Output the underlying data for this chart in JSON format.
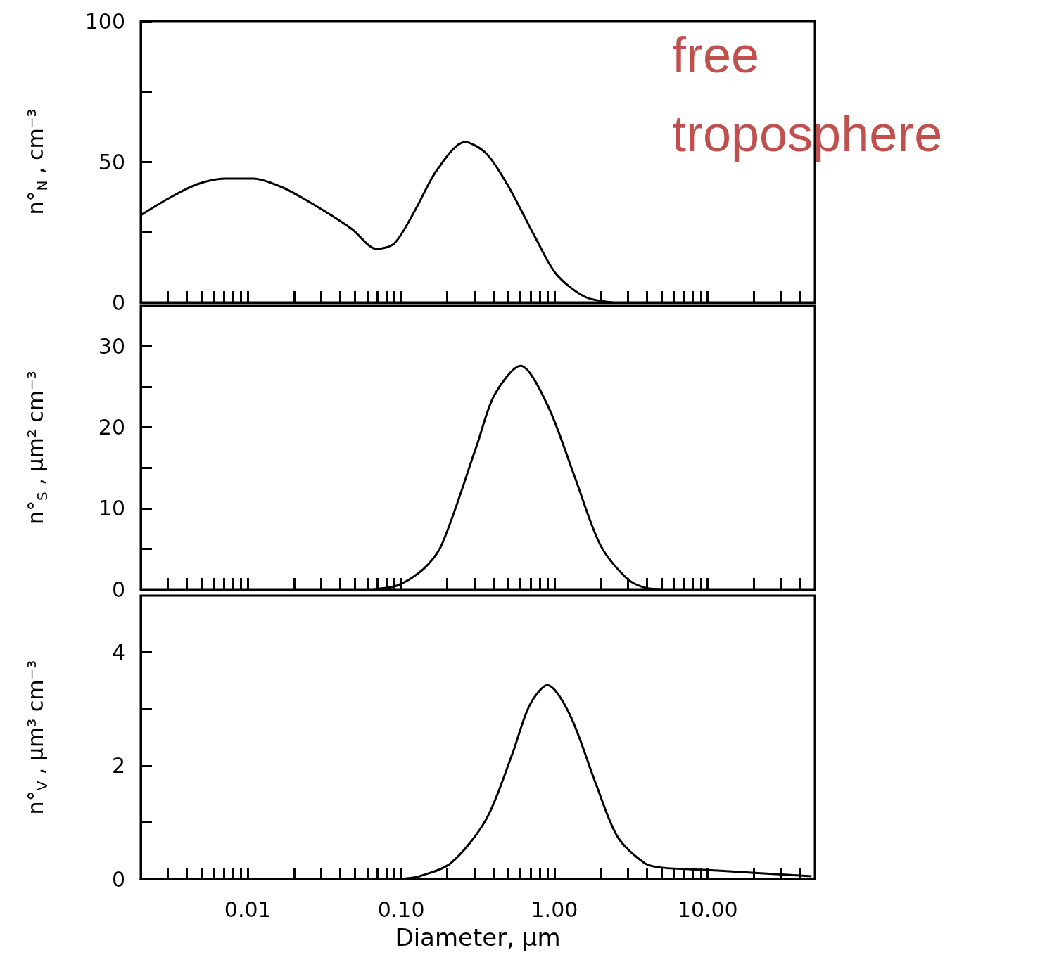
{
  "chart_data": [
    {
      "type": "line",
      "ylabel": "n°$_{N}$ , cm⁻³",
      "log": "x",
      "tick_labels": "y",
      "annotations": [
        "free troposphere"
      ],
      "xlim": [
        0.002,
        50
      ],
      "ylim": [
        0,
        100
      ],
      "yticks": [
        0,
        {
          "value": 25,
          "label": null
        },
        50,
        {
          "value": 75,
          "label": null
        },
        100
      ],
      "xticks": [
        {
          "value": 0.003,
          "label": null
        },
        {
          "value": 0.004,
          "label": null
        },
        {
          "value": 0.005,
          "label": null
        },
        {
          "value": 0.006,
          "label": null
        },
        {
          "value": 0.007,
          "label": null
        },
        {
          "value": 0.008,
          "label": null
        },
        {
          "value": 0.009,
          "label": null
        },
        {
          "value": 0.01,
          "label": null
        },
        {
          "value": 0.02,
          "label": null
        },
        {
          "value": 0.03,
          "label": null
        },
        {
          "value": 0.04,
          "label": null
        },
        {
          "value": 0.05,
          "label": null
        },
        {
          "value": 0.06,
          "label": null
        },
        {
          "value": 0.07,
          "label": null
        },
        {
          "value": 0.08,
          "label": null
        },
        {
          "value": 0.09,
          "label": null
        },
        {
          "value": 0.1,
          "label": null
        },
        {
          "value": 0.2,
          "label": null
        },
        {
          "value": 0.3,
          "label": null
        },
        {
          "value": 0.4,
          "label": null
        },
        {
          "value": 0.5,
          "label": null
        },
        {
          "value": 0.6,
          "label": null
        },
        {
          "value": 0.7,
          "label": null
        },
        {
          "value": 0.8,
          "label": null
        },
        {
          "value": 0.9,
          "label": null
        },
        {
          "value": 1,
          "label": null
        },
        {
          "value": 2,
          "label": null
        },
        {
          "value": 3,
          "label": null
        },
        {
          "value": 4,
          "label": null
        },
        {
          "value": 5,
          "label": null
        },
        {
          "value": 6,
          "label": null
        },
        {
          "value": 7,
          "label": null
        },
        {
          "value": 8,
          "label": null
        },
        {
          "value": 9,
          "label": null
        },
        {
          "value": 10,
          "label": null
        },
        {
          "value": 20,
          "label": null
        },
        {
          "value": 30,
          "label": null
        },
        {
          "value": 40,
          "label": null
        }
      ],
      "series": [
        {
          "color": "#000000",
          "x": [
            0.002,
            0.00305,
            0.00467,
            0.00713,
            0.0109,
            0.0166,
            0.0229,
            0.0349,
            0.0479,
            0.0693,
            0.0904,
            0.124,
            0.171,
            0.261,
            0.358,
            0.492,
            0.752,
            1.03,
            1.58,
            2.41
          ],
          "values": [
            31,
            37,
            42,
            44,
            44,
            41,
            37,
            31,
            26,
            19,
            21,
            33,
            47,
            57,
            53,
            42,
            23,
            10,
            2,
            0
          ]
        }
      ]
    },
    {
      "type": "line",
      "ylabel": "n°$_{S}$ , µm² cm⁻³",
      "log": "x",
      "tick_labels": "y",
      "xlim": [
        0.002,
        50
      ],
      "ylim": [
        0,
        35
      ],
      "yticks": [
        0,
        {
          "value": 5,
          "label": null
        },
        10,
        {
          "value": 15,
          "label": null
        },
        20,
        {
          "value": 25,
          "label": null
        },
        30
      ],
      "xticks": [
        {
          "value": 0.003,
          "label": null
        },
        {
          "value": 0.004,
          "label": null
        },
        {
          "value": 0.005,
          "label": null
        },
        {
          "value": 0.006,
          "label": null
        },
        {
          "value": 0.007,
          "label": null
        },
        {
          "value": 0.008,
          "label": null
        },
        {
          "value": 0.009,
          "label": null
        },
        {
          "value": 0.01,
          "label": null
        },
        {
          "value": 0.02,
          "label": null
        },
        {
          "value": 0.03,
          "label": null
        },
        {
          "value": 0.04,
          "label": null
        },
        {
          "value": 0.05,
          "label": null
        },
        {
          "value": 0.06,
          "label": null
        },
        {
          "value": 0.07,
          "label": null
        },
        {
          "value": 0.08,
          "label": null
        },
        {
          "value": 0.09,
          "label": null
        },
        {
          "value": 0.1,
          "label": null
        },
        {
          "value": 0.2,
          "label": null
        },
        {
          "value": 0.3,
          "label": null
        },
        {
          "value": 0.4,
          "label": null
        },
        {
          "value": 0.5,
          "label": null
        },
        {
          "value": 0.6,
          "label": null
        },
        {
          "value": 0.7,
          "label": null
        },
        {
          "value": 0.8,
          "label": null
        },
        {
          "value": 0.9,
          "label": null
        },
        {
          "value": 1,
          "label": null
        },
        {
          "value": 2,
          "label": null
        },
        {
          "value": 3,
          "label": null
        },
        {
          "value": 4,
          "label": null
        },
        {
          "value": 5,
          "label": null
        },
        {
          "value": 6,
          "label": null
        },
        {
          "value": 7,
          "label": null
        },
        {
          "value": 8,
          "label": null
        },
        {
          "value": 9,
          "label": null
        },
        {
          "value": 10,
          "label": null
        },
        {
          "value": 20,
          "label": null
        },
        {
          "value": 30,
          "label": null
        },
        {
          "value": 40,
          "label": null
        }
      ],
      "series": [
        {
          "color": "#000000",
          "x": [
            0.0658,
            0.0953,
            0.14,
            0.184,
            0.312,
            0.406,
            0.601,
            0.899,
            1.35,
            1.99,
            2.98,
            3.88,
            5
          ],
          "values": [
            0,
            0.5,
            2.5,
            5.5,
            17.8,
            24,
            27.6,
            22.8,
            14,
            5.5,
            1.3,
            0.2,
            0
          ]
        }
      ]
    },
    {
      "type": "line",
      "ylabel": "n°$_{V}$ , µm³ cm⁻³",
      "xlabel": "Diameter, µm",
      "log": "x",
      "xlim": [
        0.002,
        50
      ],
      "ylim": [
        0,
        5
      ],
      "yticks": [
        0,
        {
          "value": 1,
          "label": null
        },
        2,
        {
          "value": 3,
          "label": null
        },
        4
      ],
      "xticks": [
        {
          "value": 0.003,
          "label": null
        },
        {
          "value": 0.004,
          "label": null
        },
        {
          "value": 0.005,
          "label": null
        },
        {
          "value": 0.006,
          "label": null
        },
        {
          "value": 0.007,
          "label": null
        },
        {
          "value": 0.008,
          "label": null
        },
        {
          "value": 0.009,
          "label": null
        },
        {
          "value": 0.01,
          "label": "0.01"
        },
        {
          "value": 0.02,
          "label": null
        },
        {
          "value": 0.03,
          "label": null
        },
        {
          "value": 0.04,
          "label": null
        },
        {
          "value": 0.05,
          "label": null
        },
        {
          "value": 0.06,
          "label": null
        },
        {
          "value": 0.07,
          "label": null
        },
        {
          "value": 0.08,
          "label": null
        },
        {
          "value": 0.09,
          "label": null
        },
        {
          "value": 0.1,
          "label": "0.10"
        },
        {
          "value": 0.2,
          "label": null
        },
        {
          "value": 0.3,
          "label": null
        },
        {
          "value": 0.4,
          "label": null
        },
        {
          "value": 0.5,
          "label": null
        },
        {
          "value": 0.6,
          "label": null
        },
        {
          "value": 0.7,
          "label": null
        },
        {
          "value": 0.8,
          "label": null
        },
        {
          "value": 0.9,
          "label": null
        },
        {
          "value": 1,
          "label": "1.00"
        },
        {
          "value": 2,
          "label": null
        },
        {
          "value": 3,
          "label": null
        },
        {
          "value": 4,
          "label": null
        },
        {
          "value": 5,
          "label": null
        },
        {
          "value": 6,
          "label": null
        },
        {
          "value": 7,
          "label": null
        },
        {
          "value": 8,
          "label": null
        },
        {
          "value": 9,
          "label": null
        },
        {
          "value": 10,
          "label": "10.00"
        },
        {
          "value": 20,
          "label": null
        },
        {
          "value": 30,
          "label": null
        },
        {
          "value": 40,
          "label": null
        }
      ],
      "series": [
        {
          "color": "#000000",
          "x": [
            0.1,
            0.132,
            0.211,
            0.358,
            0.53,
            0.69,
            0.899,
            1.26,
            1.87,
            2.59,
            3.88,
            5.05,
            9.75,
            47.6
          ],
          "values": [
            0,
            0.05,
            0.28,
            1.05,
            2.2,
            3.07,
            3.42,
            2.9,
            1.67,
            0.74,
            0.28,
            0.2,
            0.16,
            0.05
          ]
        }
      ]
    }
  ]
}
